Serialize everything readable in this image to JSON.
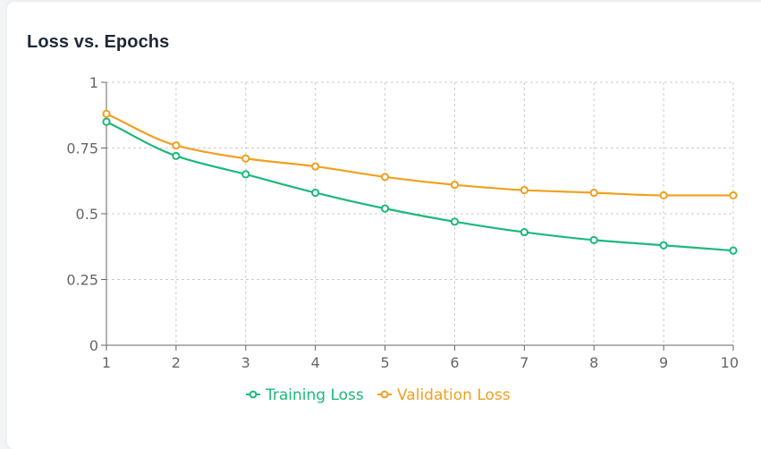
{
  "chart_data": {
    "type": "line",
    "title": "Loss vs. Epochs",
    "xlabel": "",
    "ylabel": "",
    "x": [
      1,
      2,
      3,
      4,
      5,
      6,
      7,
      8,
      9,
      10
    ],
    "xlim": [
      1,
      10
    ],
    "ylim": [
      0,
      1
    ],
    "yticks": [
      0,
      0.25,
      0.5,
      0.75,
      1
    ],
    "ytick_labels": [
      "0",
      "0.25",
      "0.5",
      "0.75",
      "1"
    ],
    "xtick_labels": [
      "1",
      "2",
      "3",
      "4",
      "5",
      "6",
      "7",
      "8",
      "9",
      "10"
    ],
    "grid": true,
    "legend_position": "bottom",
    "series": [
      {
        "name": "Training Loss",
        "color": "#1db87a",
        "values": [
          0.85,
          0.72,
          0.65,
          0.58,
          0.52,
          0.47,
          0.43,
          0.4,
          0.38,
          0.36
        ]
      },
      {
        "name": "Validation Loss",
        "color": "#f0a020",
        "values": [
          0.88,
          0.76,
          0.71,
          0.68,
          0.64,
          0.61,
          0.59,
          0.58,
          0.57,
          0.57
        ]
      }
    ]
  }
}
